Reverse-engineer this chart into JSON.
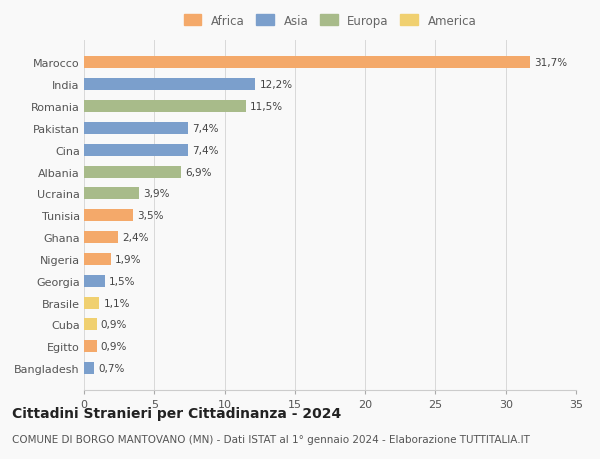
{
  "categories": [
    "Bangladesh",
    "Egitto",
    "Cuba",
    "Brasile",
    "Georgia",
    "Nigeria",
    "Ghana",
    "Tunisia",
    "Ucraina",
    "Albania",
    "Cina",
    "Pakistan",
    "Romania",
    "India",
    "Marocco"
  ],
  "values": [
    0.7,
    0.9,
    0.9,
    1.1,
    1.5,
    1.9,
    2.4,
    3.5,
    3.9,
    6.9,
    7.4,
    7.4,
    11.5,
    12.2,
    31.7
  ],
  "labels": [
    "0,7%",
    "0,9%",
    "0,9%",
    "1,1%",
    "1,5%",
    "1,9%",
    "2,4%",
    "3,5%",
    "3,9%",
    "6,9%",
    "7,4%",
    "7,4%",
    "11,5%",
    "12,2%",
    "31,7%"
  ],
  "continents": [
    "Asia",
    "Africa",
    "America",
    "America",
    "Asia",
    "Africa",
    "Africa",
    "Africa",
    "Europa",
    "Europa",
    "Asia",
    "Asia",
    "Europa",
    "Asia",
    "Africa"
  ],
  "colors": {
    "Africa": "#F4A96A",
    "Asia": "#7B9FCC",
    "Europa": "#A8BB8A",
    "America": "#F0D070"
  },
  "legend_order": [
    "Africa",
    "Asia",
    "Europa",
    "America"
  ],
  "title": "Cittadini Stranieri per Cittadinanza - 2024",
  "subtitle": "COMUNE DI BORGO MANTOVANO (MN) - Dati ISTAT al 1° gennaio 2024 - Elaborazione TUTTITALIA.IT",
  "xlim": [
    0,
    35
  ],
  "xticks": [
    0,
    5,
    10,
    15,
    20,
    25,
    30,
    35
  ],
  "background_color": "#f9f9f9",
  "grid_color": "#d8d8d8",
  "bar_height": 0.55,
  "title_fontsize": 10,
  "subtitle_fontsize": 7.5,
  "tick_fontsize": 8,
  "label_fontsize": 7.5,
  "legend_fontsize": 8.5
}
